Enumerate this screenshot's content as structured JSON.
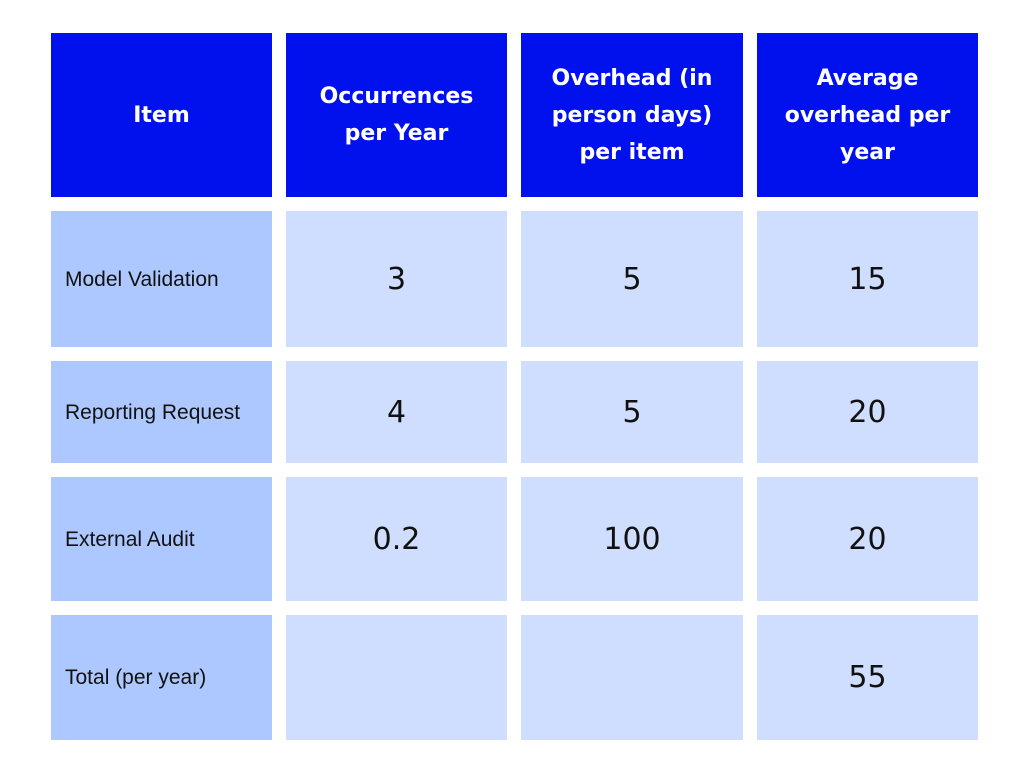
{
  "headers": {
    "item": "Item",
    "occurrences": "Occurrences per Year",
    "overhead": "Overhead (in person days) per item",
    "average": "Average overhead per year"
  },
  "rows": [
    {
      "item": "Model Validation",
      "occurrences": "3",
      "overhead": "5",
      "average": "15"
    },
    {
      "item": "Reporting Request",
      "occurrences": "4",
      "overhead": "5",
      "average": "20"
    },
    {
      "item": "External Audit",
      "occurrences": "0.2",
      "overhead": "100",
      "average": "20"
    },
    {
      "item": "Total (per year)",
      "occurrences": "",
      "overhead": "",
      "average": "55"
    }
  ],
  "colors": {
    "header_bg": "#0011ee",
    "label_bg": "#adc8ff",
    "value_bg": "#cfdefe"
  }
}
